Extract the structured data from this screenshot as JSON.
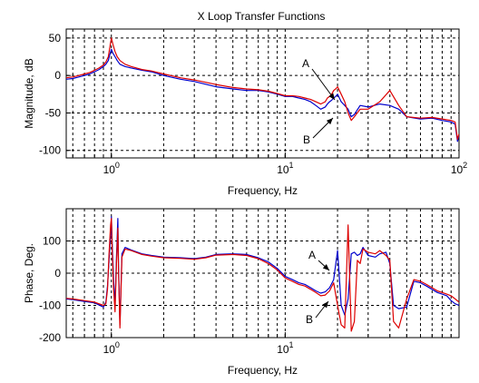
{
  "figure": {
    "title": "X Loop Transfer Functions"
  },
  "chart_data": [
    {
      "type": "line",
      "panel": "magnitude",
      "title": "X Loop Transfer Functions",
      "xlabel": "Frequency, Hz",
      "ylabel": "Magnitude, dB",
      "xscale": "log",
      "xlim": [
        0.55,
        100
      ],
      "ylim": [
        -110,
        62
      ],
      "grid": true,
      "x_ticks": [
        {
          "value": 1,
          "label": "10^0"
        },
        {
          "value": 10,
          "label": "10^1"
        },
        {
          "value": 100,
          "label": "10^2"
        }
      ],
      "y_ticks": [
        {
          "value": 50,
          "label": "50"
        },
        {
          "value": 0,
          "label": "0"
        },
        {
          "value": -50,
          "label": "-50"
        },
        {
          "value": -100,
          "label": "-100"
        }
      ],
      "series": [
        {
          "color": "#0000cc",
          "x": [
            0.55,
            0.6,
            0.65,
            0.7,
            0.75,
            0.8,
            0.85,
            0.9,
            0.93,
            0.96,
            0.98,
            1.0,
            1.02,
            1.05,
            1.08,
            1.12,
            1.2,
            1.3,
            1.5,
            1.7,
            2.0,
            2.5,
            3.0,
            4.0,
            5.0,
            6.0,
            7.0,
            8.0,
            9.0,
            10.0,
            11.0,
            12.0,
            13.0,
            14.0,
            15.0,
            16.0,
            17.0,
            17.5,
            18.0,
            18.5,
            19.0,
            19.5,
            20.0,
            21.0,
            22.0,
            23.0,
            24.0,
            25.0,
            27.0,
            30.0,
            35.0,
            40.0,
            45.0,
            50.0,
            60.0,
            70.0,
            80.0,
            90.0,
            95.0,
            98.0,
            100.0
          ],
          "y": [
            -5,
            -4,
            -2,
            0,
            2,
            5,
            8,
            12,
            15,
            20,
            28,
            35,
            30,
            25,
            20,
            15,
            12,
            10,
            7,
            5,
            0,
            -5,
            -8,
            -15,
            -18,
            -20,
            -20,
            -22,
            -25,
            -28,
            -28,
            -30,
            -32,
            -35,
            -40,
            -45,
            -42,
            -38,
            -35,
            -33,
            -30,
            -28,
            -25,
            -35,
            -40,
            -45,
            -55,
            -52,
            -40,
            -42,
            -38,
            -40,
            -45,
            -55,
            -58,
            -57,
            -60,
            -62,
            -65,
            -88,
            -80
          ]
        },
        {
          "color": "#dd0000",
          "x": [
            0.55,
            0.6,
            0.65,
            0.7,
            0.75,
            0.8,
            0.85,
            0.9,
            0.93,
            0.96,
            0.98,
            1.0,
            1.02,
            1.05,
            1.08,
            1.12,
            1.2,
            1.3,
            1.5,
            1.7,
            2.0,
            2.5,
            3.0,
            4.0,
            5.0,
            6.0,
            7.0,
            8.0,
            9.0,
            10.0,
            11.0,
            12.0,
            13.0,
            14.0,
            15.0,
            16.0,
            17.0,
            17.5,
            18.0,
            18.5,
            19.0,
            19.5,
            20.0,
            21.0,
            22.0,
            23.0,
            24.0,
            25.0,
            27.0,
            30.0,
            35.0,
            40.0,
            45.0,
            50.0,
            60.0,
            70.0,
            80.0,
            90.0,
            95.0,
            98.0,
            100.0
          ],
          "y": [
            -3,
            -2,
            0,
            2,
            4,
            7,
            10,
            14,
            18,
            25,
            38,
            50,
            42,
            32,
            25,
            20,
            15,
            12,
            8,
            6,
            2,
            -3,
            -6,
            -12,
            -16,
            -18,
            -19,
            -21,
            -24,
            -27,
            -27,
            -28,
            -30,
            -32,
            -35,
            -38,
            -35,
            -30,
            -28,
            -25,
            -20,
            -18,
            -15,
            -25,
            -35,
            -50,
            -60,
            -55,
            -45,
            -45,
            -35,
            -20,
            -40,
            -55,
            -57,
            -56,
            -58,
            -60,
            -62,
            -85,
            -78
          ]
        }
      ],
      "annotations": [
        {
          "text": "A",
          "x": 14.5,
          "y": -3
        },
        {
          "text": "B",
          "x": 14.3,
          "y": -83
        }
      ]
    },
    {
      "type": "line",
      "panel": "phase",
      "title": "",
      "xlabel": "Frequency, Hz",
      "ylabel": "Phase, Deg.",
      "xscale": "log",
      "xlim": [
        0.55,
        100
      ],
      "ylim": [
        -200,
        200
      ],
      "grid": true,
      "x_ticks": [
        {
          "value": 1,
          "label": "10^0"
        },
        {
          "value": 10,
          "label": "10^1"
        }
      ],
      "y_ticks": [
        {
          "value": 100,
          "label": "100"
        },
        {
          "value": 0,
          "label": "0"
        },
        {
          "value": -100,
          "label": "-100"
        },
        {
          "value": -200,
          "label": "-200"
        }
      ],
      "series": [
        {
          "color": "#0000cc",
          "x": [
            0.55,
            0.6,
            0.7,
            0.8,
            0.9,
            0.93,
            0.95,
            0.97,
            0.99,
            1.0,
            1.01,
            1.03,
            1.05,
            1.07,
            1.09,
            1.1,
            1.12,
            1.15,
            1.2,
            1.3,
            1.5,
            1.7,
            2.0,
            2.5,
            3.0,
            3.5,
            4.0,
            5.0,
            6.0,
            7.0,
            8.0,
            9.0,
            10.0,
            11.0,
            12.0,
            13.0,
            14.0,
            15.0,
            16.0,
            17.0,
            18.0,
            19.0,
            20.0,
            21.0,
            22.0,
            23.0,
            24.0,
            25.0,
            26.0,
            27.0,
            28.0,
            30.0,
            33.0,
            35.0,
            38.0,
            40.0,
            42.0,
            45.0,
            50.0,
            55.0,
            60.0,
            65.0,
            70.0,
            75.0,
            80.0,
            85.0,
            90.0,
            95.0,
            100.0
          ],
          "y": [
            -80,
            -82,
            -88,
            -92,
            -105,
            -90,
            -40,
            40,
            120,
            175,
            100,
            -20,
            -100,
            50,
            170,
            20,
            -160,
            60,
            80,
            72,
            60,
            55,
            50,
            48,
            45,
            50,
            58,
            60,
            58,
            48,
            35,
            15,
            -10,
            -20,
            -30,
            -35,
            -45,
            -55,
            -62,
            -58,
            -45,
            -20,
            70,
            -100,
            -130,
            -80,
            60,
            65,
            55,
            60,
            80,
            55,
            50,
            60,
            65,
            30,
            -100,
            -110,
            -105,
            -25,
            -30,
            -40,
            -50,
            -60,
            -65,
            -70,
            -85,
            -95,
            -100
          ]
        },
        {
          "color": "#dd0000",
          "x": [
            0.55,
            0.6,
            0.7,
            0.8,
            0.9,
            0.93,
            0.95,
            0.97,
            0.99,
            1.0,
            1.01,
            1.03,
            1.05,
            1.07,
            1.09,
            1.1,
            1.12,
            1.15,
            1.2,
            1.3,
            1.5,
            1.7,
            2.0,
            2.5,
            3.0,
            3.5,
            4.0,
            5.0,
            6.0,
            7.0,
            8.0,
            9.0,
            10.0,
            11.0,
            12.0,
            13.0,
            14.0,
            15.0,
            16.0,
            17.0,
            18.0,
            19.0,
            20.0,
            21.0,
            22.0,
            23.0,
            24.0,
            25.0,
            26.0,
            27.0,
            28.0,
            30.0,
            33.0,
            35.0,
            38.0,
            40.0,
            42.0,
            45.0,
            50.0,
            55.0,
            60.0,
            65.0,
            70.0,
            75.0,
            80.0,
            85.0,
            90.0,
            95.0,
            100.0
          ],
          "y": [
            -78,
            -80,
            -85,
            -90,
            -100,
            -95,
            -50,
            60,
            150,
            170,
            80,
            -50,
            -120,
            30,
            140,
            0,
            -170,
            50,
            75,
            70,
            58,
            53,
            48,
            46,
            43,
            48,
            56,
            58,
            55,
            45,
            30,
            10,
            -15,
            -25,
            -35,
            -40,
            -50,
            -60,
            -70,
            -68,
            -55,
            -30,
            -100,
            -160,
            -170,
            150,
            -180,
            -150,
            40,
            30,
            75,
            65,
            60,
            70,
            55,
            40,
            -150,
            -170,
            -80,
            -20,
            -25,
            -35,
            -45,
            -55,
            -60,
            -65,
            -70,
            -80,
            -90
          ]
        }
      ],
      "annotations": [
        {
          "text": "A",
          "x": 13.2,
          "y": 105
        },
        {
          "text": "B",
          "x": 13.0,
          "y": -142
        }
      ]
    }
  ]
}
